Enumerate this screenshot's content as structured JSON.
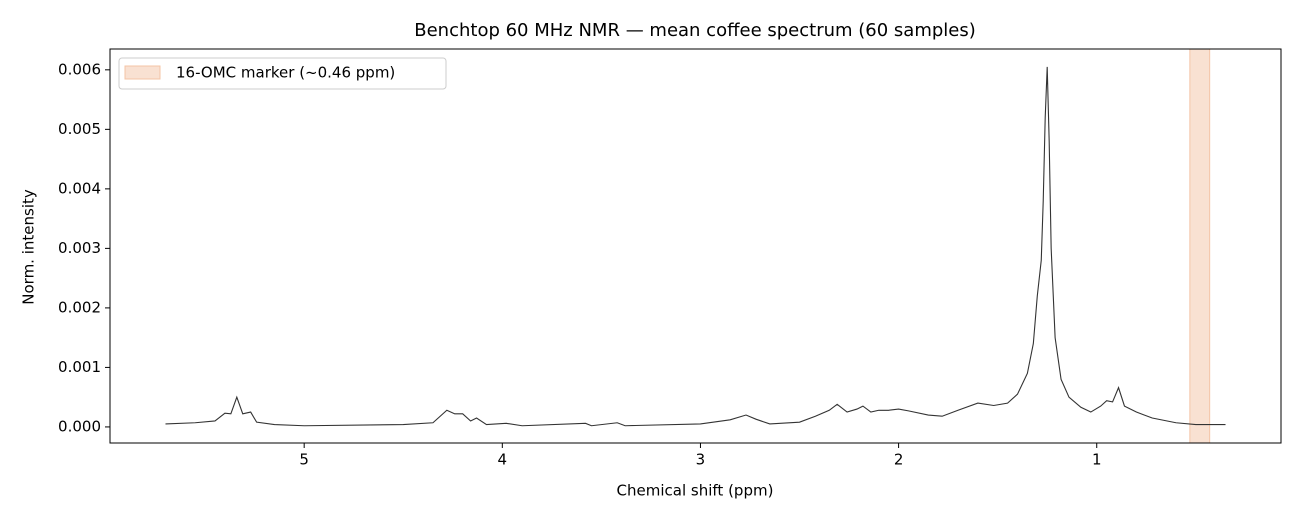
{
  "chart_data": {
    "type": "line",
    "title": "Benchtop 60 MHz NMR — mean coffee spectrum (60 samples)",
    "xlabel": "Chemical shift (ppm)",
    "ylabel": "Norm. intensity",
    "xlim": [
      5.98,
      0.07
    ],
    "ylim": [
      -0.00027,
      0.00635
    ],
    "xticks": [
      5,
      4,
      3,
      2,
      1
    ],
    "yticks": [
      {
        "value": 0,
        "label": "0.000"
      },
      0.001,
      0.002,
      0.003,
      0.004,
      0.005,
      0.006
    ],
    "legend": "upper left",
    "bands": [
      {
        "name": "16-OMC marker (~0.46 ppm)",
        "range": [
          0.43,
          0.53
        ],
        "color": "#f4c4a6"
      }
    ],
    "series": [
      {
        "color": "#333333",
        "x": [
          5.7,
          5.55,
          5.45,
          5.4,
          5.37,
          5.34,
          5.31,
          5.27,
          5.24,
          5.15,
          5.0,
          4.5,
          4.35,
          4.28,
          4.24,
          4.2,
          4.16,
          4.13,
          4.08,
          3.98,
          3.9,
          3.58,
          3.55,
          3.42,
          3.38,
          3.0,
          2.85,
          2.77,
          2.72,
          2.65,
          2.5,
          2.42,
          2.35,
          2.31,
          2.26,
          2.21,
          2.18,
          2.14,
          2.1,
          2.05,
          2.0,
          1.95,
          1.85,
          1.78,
          1.7,
          1.6,
          1.52,
          1.45,
          1.4,
          1.35,
          1.32,
          1.3,
          1.28,
          1.27,
          1.26,
          1.25,
          1.24,
          1.23,
          1.21,
          1.18,
          1.14,
          1.08,
          1.03,
          0.98,
          0.95,
          0.92,
          0.89,
          0.86,
          0.8,
          0.72,
          0.6,
          0.5,
          0.35
        ],
        "values": [
          5e-05,
          7e-05,
          0.0001,
          0.00023,
          0.00022,
          0.0005,
          0.00022,
          0.00025,
          8e-05,
          4e-05,
          2e-05,
          4e-05,
          7e-05,
          0.00028,
          0.00022,
          0.00022,
          0.0001,
          0.00015,
          4e-05,
          6e-05,
          2e-05,
          6e-05,
          2e-05,
          7e-05,
          2e-05,
          5e-05,
          0.00012,
          0.0002,
          0.00013,
          5e-05,
          8e-05,
          0.00018,
          0.00028,
          0.00038,
          0.00025,
          0.0003,
          0.00035,
          0.00025,
          0.00028,
          0.00028,
          0.0003,
          0.00027,
          0.0002,
          0.00018,
          0.00028,
          0.0004,
          0.00036,
          0.0004,
          0.00055,
          0.0009,
          0.0014,
          0.0022,
          0.0028,
          0.0038,
          0.0052,
          0.00605,
          0.0048,
          0.003,
          0.0015,
          0.0008,
          0.0005,
          0.00033,
          0.00025,
          0.00035,
          0.00044,
          0.00042,
          0.00066,
          0.00035,
          0.00025,
          0.00015,
          7e-05,
          4e-05,
          4e-05
        ]
      }
    ]
  }
}
